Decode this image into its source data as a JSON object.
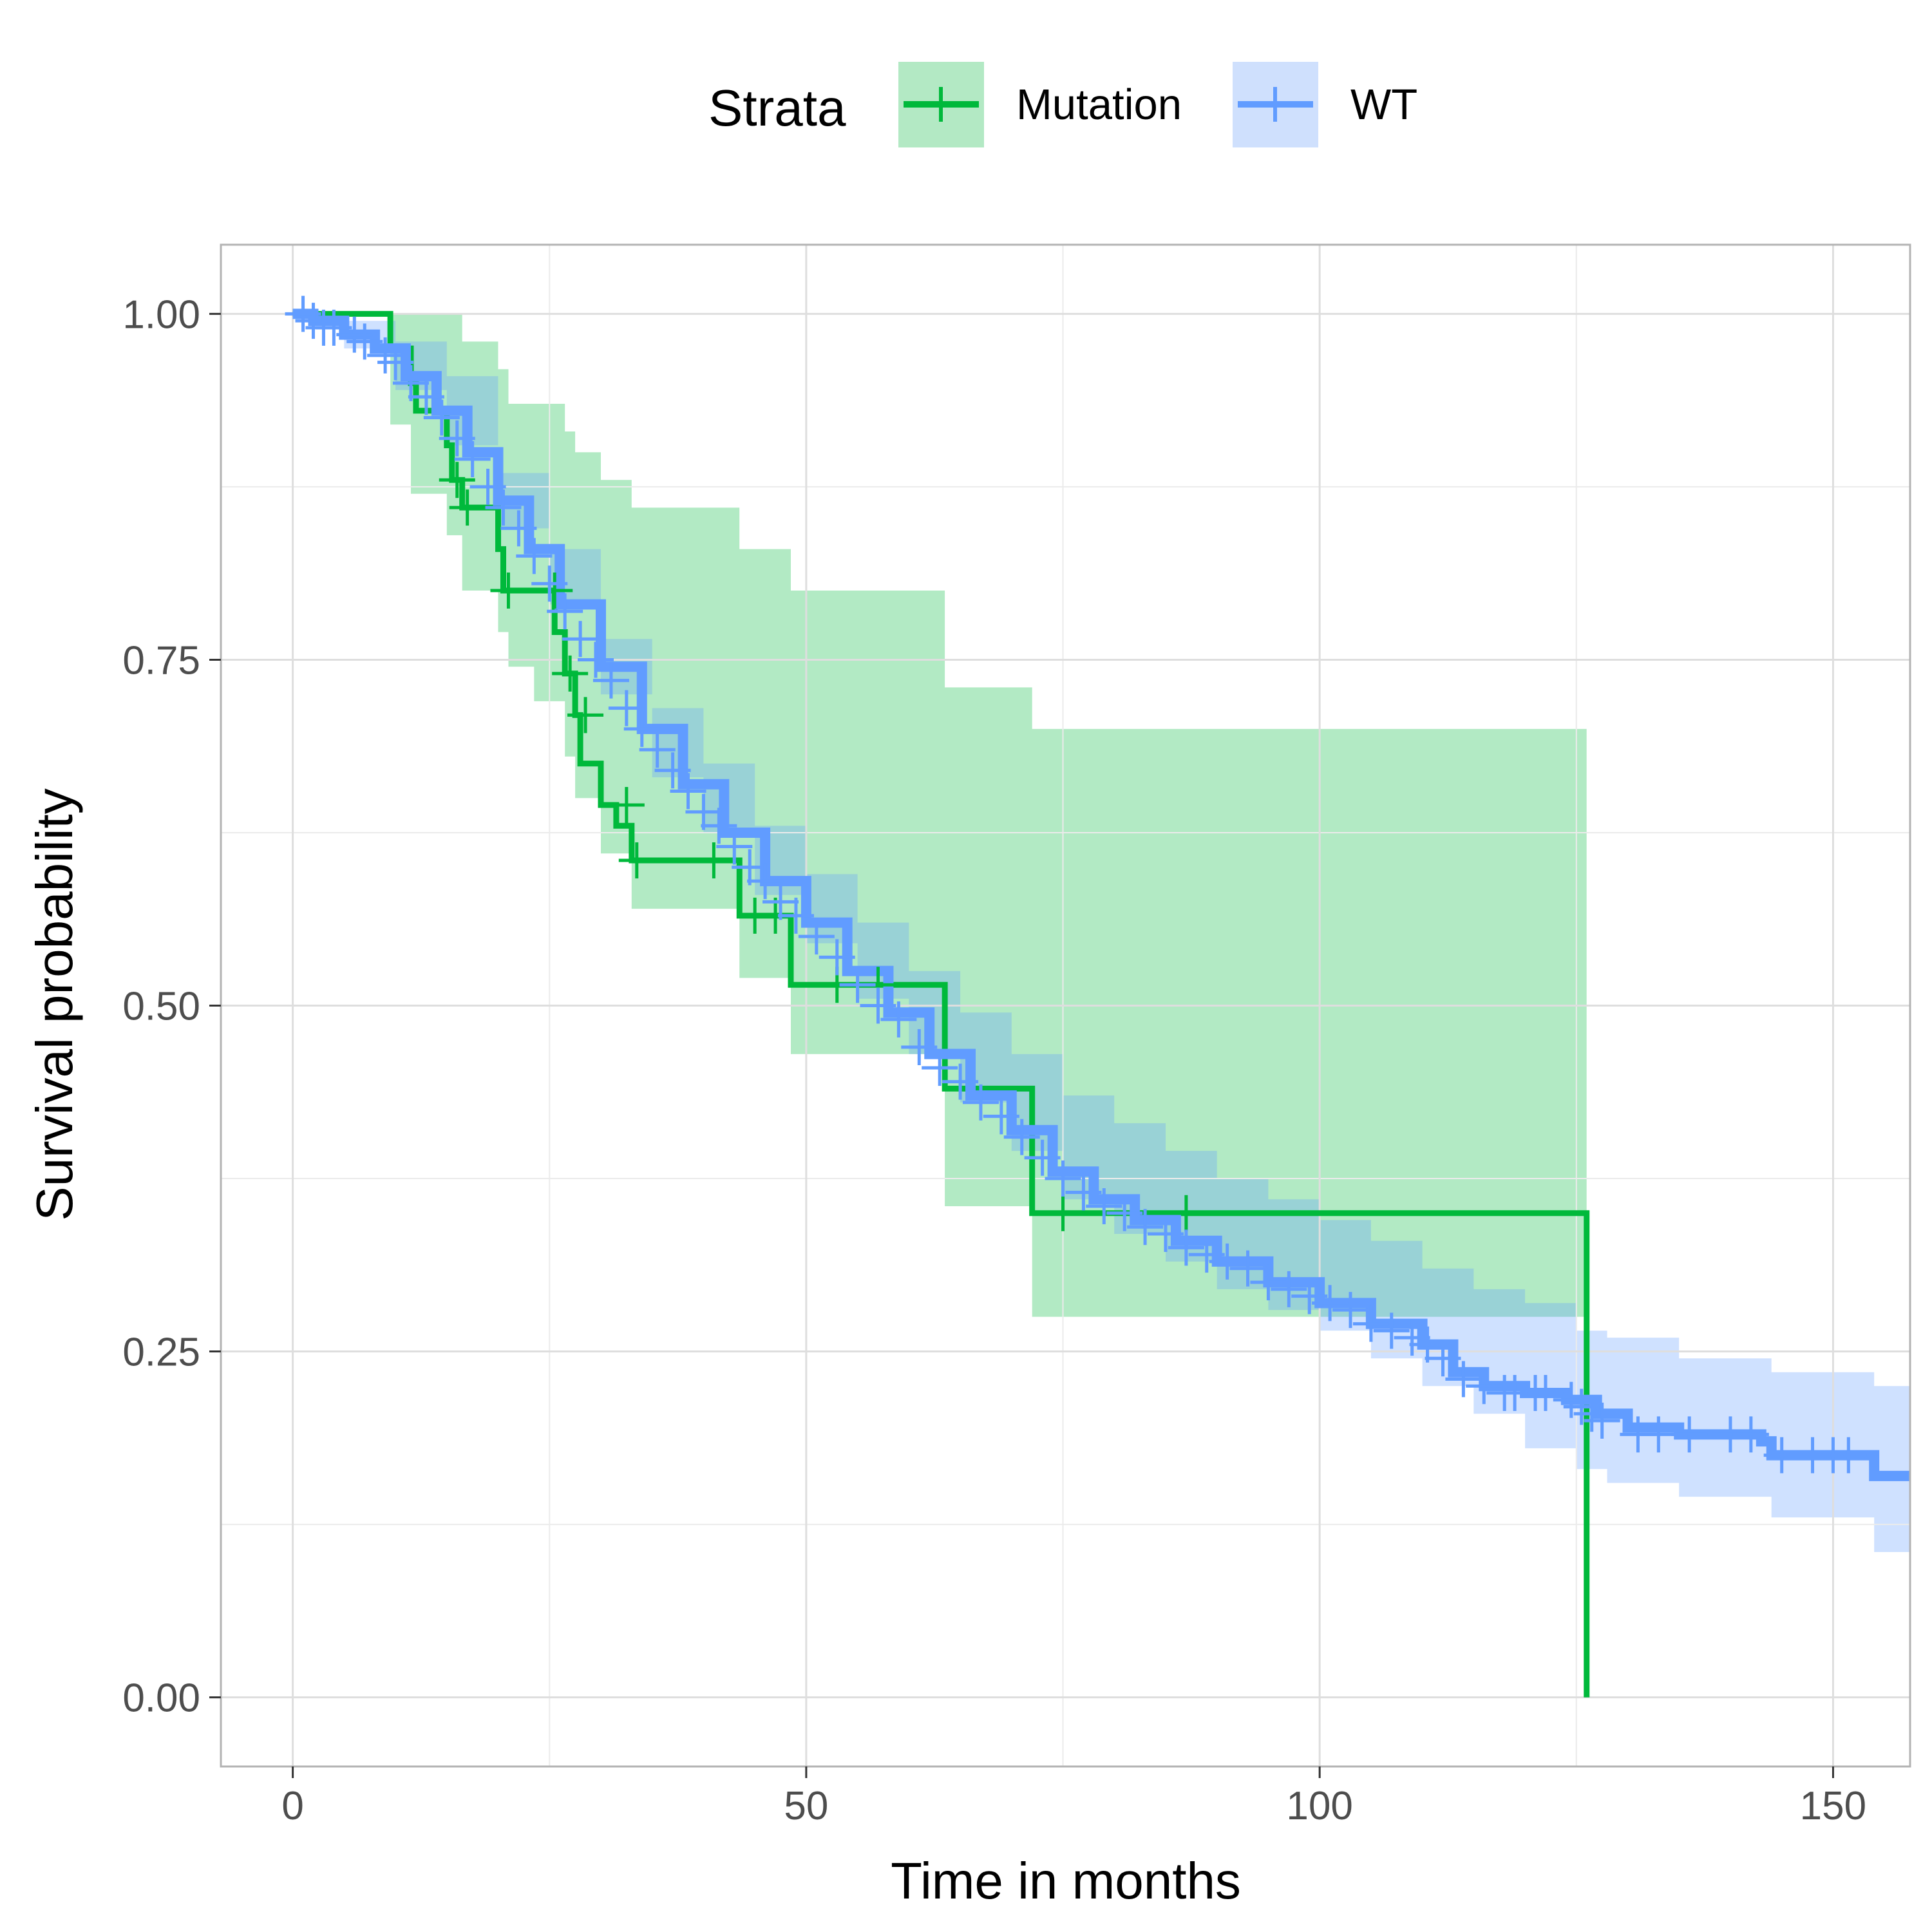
{
  "chart_data": {
    "type": "line",
    "subtype": "kaplan-meier",
    "title": "",
    "xlabel": "Time in months",
    "ylabel": "Survival probability",
    "xlim": [
      -7,
      157.5
    ],
    "ylim": [
      -0.05,
      1.05
    ],
    "x_ticks": [
      0,
      50,
      100,
      150
    ],
    "x_tick_labels": [
      "0",
      "50",
      "100",
      "150"
    ],
    "y_ticks": [
      0,
      0.25,
      0.5,
      0.75,
      1
    ],
    "y_tick_labels": [
      "0.00",
      "0.25",
      "0.50",
      "0.75",
      "1.00"
    ],
    "grid": true,
    "legend": {
      "title": "Strata",
      "position": "top",
      "entries": [
        "Mutation",
        "WT"
      ]
    },
    "colors": {
      "Mutation": "#00b93b",
      "WT": "#619cff",
      "Mutation_band": "#b3e9c4",
      "WT_band": "#cfe0fd"
    },
    "series": [
      {
        "name": "Mutation",
        "steps": [
          [
            0,
            1.0
          ],
          [
            9.5,
            0.975
          ],
          [
            11.5,
            0.95
          ],
          [
            12.0,
            0.93
          ],
          [
            15.0,
            0.905
          ],
          [
            15.5,
            0.88
          ],
          [
            16.5,
            0.86
          ],
          [
            20.0,
            0.83
          ],
          [
            20.5,
            0.8
          ],
          [
            25.5,
            0.77
          ],
          [
            26.5,
            0.74
          ],
          [
            27.5,
            0.71
          ],
          [
            28.0,
            0.675
          ],
          [
            30.0,
            0.645
          ],
          [
            31.5,
            0.63
          ],
          [
            33.0,
            0.605
          ],
          [
            43.5,
            0.565
          ],
          [
            48.5,
            0.515
          ],
          [
            63.5,
            0.44
          ],
          [
            72.0,
            0.35
          ],
          [
            126.0,
            0.0
          ]
        ],
        "end_x": 126.0,
        "censor": [
          [
            16,
            0.88
          ],
          [
            17,
            0.86
          ],
          [
            21,
            0.8
          ],
          [
            25.5,
            0.8
          ],
          [
            27,
            0.74
          ],
          [
            28.5,
            0.71
          ],
          [
            32.5,
            0.645
          ],
          [
            33.5,
            0.605
          ],
          [
            41,
            0.605
          ],
          [
            45,
            0.565
          ],
          [
            47,
            0.565
          ],
          [
            53,
            0.515
          ],
          [
            57,
            0.515
          ],
          [
            75,
            0.35
          ],
          [
            87,
            0.35
          ]
        ],
        "band": [
          [
            0,
            1.0,
            1.0
          ],
          [
            9.5,
            0.92,
            1.0
          ],
          [
            11.5,
            0.87,
            1.0
          ],
          [
            15.0,
            0.84,
            1.0
          ],
          [
            16.5,
            0.8,
            0.98
          ],
          [
            20.0,
            0.77,
            0.96
          ],
          [
            21.0,
            0.745,
            0.935
          ],
          [
            23.5,
            0.72,
            0.935
          ],
          [
            26.5,
            0.68,
            0.915
          ],
          [
            27.5,
            0.65,
            0.9
          ],
          [
            30.0,
            0.61,
            0.88
          ],
          [
            33.0,
            0.57,
            0.86
          ],
          [
            43.5,
            0.52,
            0.83
          ],
          [
            48.5,
            0.465,
            0.8
          ],
          [
            63.5,
            0.355,
            0.73
          ],
          [
            72.0,
            0.275,
            0.7
          ],
          [
            126.0,
            0.185,
            0.665
          ]
        ]
      },
      {
        "name": "WT",
        "points": [
          [
            0,
            1.0
          ],
          [
            2,
            0.995
          ],
          [
            5,
            0.985
          ],
          [
            8,
            0.975
          ],
          [
            11,
            0.955
          ],
          [
            14,
            0.93
          ],
          [
            17,
            0.9
          ],
          [
            20,
            0.865
          ],
          [
            23,
            0.83
          ],
          [
            26,
            0.79
          ],
          [
            30,
            0.745
          ],
          [
            34,
            0.7
          ],
          [
            38,
            0.66
          ],
          [
            42,
            0.625
          ],
          [
            46,
            0.59
          ],
          [
            50,
            0.56
          ],
          [
            54,
            0.525
          ],
          [
            58,
            0.495
          ],
          [
            62,
            0.465
          ],
          [
            66,
            0.435
          ],
          [
            70,
            0.41
          ],
          [
            74,
            0.38
          ],
          [
            78,
            0.36
          ],
          [
            82,
            0.345
          ],
          [
            86,
            0.33
          ],
          [
            90,
            0.315
          ],
          [
            95,
            0.3
          ],
          [
            100,
            0.285
          ],
          [
            105,
            0.27
          ],
          [
            110,
            0.255
          ],
          [
            113,
            0.235
          ],
          [
            116,
            0.225
          ],
          [
            120,
            0.22
          ],
          [
            124,
            0.215
          ],
          [
            127,
            0.205
          ],
          [
            130,
            0.195
          ],
          [
            135,
            0.19
          ],
          [
            140,
            0.19
          ],
          [
            143,
            0.185
          ],
          [
            144,
            0.175
          ],
          [
            150,
            0.175
          ],
          [
            153,
            0.175
          ],
          [
            154,
            0.16
          ],
          [
            157.5,
            0.16
          ]
        ],
        "band": [
          [
            0,
            1.0,
            1.0
          ],
          [
            5,
            0.975,
            0.995
          ],
          [
            10,
            0.945,
            0.98
          ],
          [
            15,
            0.905,
            0.955
          ],
          [
            20,
            0.845,
            0.885
          ],
          [
            25,
            0.79,
            0.83
          ],
          [
            30,
            0.725,
            0.765
          ],
          [
            35,
            0.665,
            0.715
          ],
          [
            40,
            0.625,
            0.675
          ],
          [
            45,
            0.58,
            0.63
          ],
          [
            50,
            0.545,
            0.595
          ],
          [
            55,
            0.505,
            0.56
          ],
          [
            60,
            0.465,
            0.525
          ],
          [
            65,
            0.43,
            0.495
          ],
          [
            70,
            0.395,
            0.465
          ],
          [
            75,
            0.36,
            0.435
          ],
          [
            80,
            0.335,
            0.415
          ],
          [
            85,
            0.315,
            0.395
          ],
          [
            90,
            0.295,
            0.375
          ],
          [
            95,
            0.28,
            0.36
          ],
          [
            100,
            0.265,
            0.345
          ],
          [
            105,
            0.245,
            0.33
          ],
          [
            110,
            0.225,
            0.31
          ],
          [
            115,
            0.205,
            0.295
          ],
          [
            120,
            0.18,
            0.285
          ],
          [
            125,
            0.165,
            0.265
          ],
          [
            128,
            0.155,
            0.26
          ],
          [
            135,
            0.145,
            0.245
          ],
          [
            144,
            0.13,
            0.235
          ],
          [
            150,
            0.13,
            0.235
          ],
          [
            154,
            0.105,
            0.225
          ],
          [
            157.5,
            0.105,
            0.225
          ]
        ],
        "censor": [
          [
            1,
            1.0
          ],
          [
            2,
            0.995
          ],
          [
            3,
            0.99
          ],
          [
            4,
            0.99
          ],
          [
            6,
            0.985
          ],
          [
            7,
            0.98
          ],
          [
            9,
            0.97
          ],
          [
            10,
            0.965
          ],
          [
            11.5,
            0.95
          ],
          [
            13,
            0.94
          ],
          [
            14.5,
            0.925
          ],
          [
            16,
            0.91
          ],
          [
            17.5,
            0.895
          ],
          [
            19,
            0.875
          ],
          [
            20.5,
            0.86
          ],
          [
            22,
            0.845
          ],
          [
            23.5,
            0.825
          ],
          [
            25,
            0.805
          ],
          [
            26.5,
            0.785
          ],
          [
            28,
            0.765
          ],
          [
            29.5,
            0.75
          ],
          [
            31,
            0.735
          ],
          [
            32.5,
            0.715
          ],
          [
            34,
            0.7
          ],
          [
            35.5,
            0.685
          ],
          [
            37,
            0.67
          ],
          [
            38.5,
            0.655
          ],
          [
            40,
            0.64
          ],
          [
            41.5,
            0.63
          ],
          [
            43,
            0.615
          ],
          [
            44.5,
            0.6
          ],
          [
            46,
            0.59
          ],
          [
            47.5,
            0.575
          ],
          [
            49,
            0.565
          ],
          [
            51,
            0.55
          ],
          [
            53,
            0.535
          ],
          [
            55,
            0.515
          ],
          [
            57,
            0.5
          ],
          [
            59,
            0.49
          ],
          [
            61,
            0.47
          ],
          [
            63,
            0.455
          ],
          [
            65,
            0.445
          ],
          [
            67,
            0.43
          ],
          [
            69,
            0.42
          ],
          [
            71,
            0.405
          ],
          [
            73,
            0.39
          ],
          [
            75,
            0.375
          ],
          [
            77,
            0.365
          ],
          [
            79,
            0.355
          ],
          [
            81,
            0.35
          ],
          [
            83,
            0.34
          ],
          [
            85,
            0.335
          ],
          [
            87,
            0.325
          ],
          [
            89,
            0.32
          ],
          [
            91,
            0.315
          ],
          [
            93,
            0.31
          ],
          [
            95,
            0.3
          ],
          [
            97,
            0.295
          ],
          [
            99,
            0.29
          ],
          [
            101,
            0.285
          ],
          [
            103,
            0.28
          ],
          [
            105,
            0.27
          ],
          [
            107,
            0.265
          ],
          [
            109,
            0.26
          ],
          [
            110.5,
            0.255
          ],
          [
            112,
            0.245
          ],
          [
            114,
            0.23
          ],
          [
            116,
            0.225
          ],
          [
            118,
            0.22
          ],
          [
            119,
            0.22
          ],
          [
            121,
            0.22
          ],
          [
            122,
            0.22
          ],
          [
            124.5,
            0.215
          ],
          [
            125.5,
            0.21
          ],
          [
            126.5,
            0.205
          ],
          [
            127.5,
            0.2
          ],
          [
            131,
            0.19
          ],
          [
            133,
            0.19
          ],
          [
            136,
            0.19
          ],
          [
            140,
            0.19
          ],
          [
            142,
            0.19
          ],
          [
            145,
            0.175
          ],
          [
            148,
            0.175
          ],
          [
            150,
            0.175
          ],
          [
            151.5,
            0.175
          ]
        ]
      }
    ]
  }
}
